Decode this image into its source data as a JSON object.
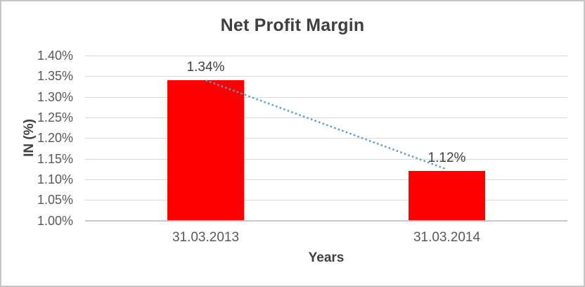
{
  "chart_data": {
    "type": "bar",
    "title": "Net Profit Margin",
    "xlabel": "Years",
    "ylabel": "IN (%)",
    "categories": [
      "31.03.2013",
      "31.03.2014"
    ],
    "values": [
      1.34,
      1.12
    ],
    "data_labels": [
      "1.34%",
      "1.12%"
    ],
    "y_tick_labels": [
      "1.00%",
      "1.05%",
      "1.10%",
      "1.15%",
      "1.20%",
      "1.25%",
      "1.30%",
      "1.35%",
      "1.40%"
    ],
    "ylim": [
      1.0,
      1.4
    ],
    "y_tick_step": 0.05,
    "grid": true,
    "legend": false,
    "bar_color": "#ff0000",
    "gridline_color": "#d9d9d9",
    "axis_line_color": "#c9c9c9",
    "title_color": "#3f3f3f",
    "tick_label_color": "#595959",
    "data_label_color": "#404040",
    "trendline": {
      "style": "dotted",
      "color": "#5b9bd5"
    }
  }
}
